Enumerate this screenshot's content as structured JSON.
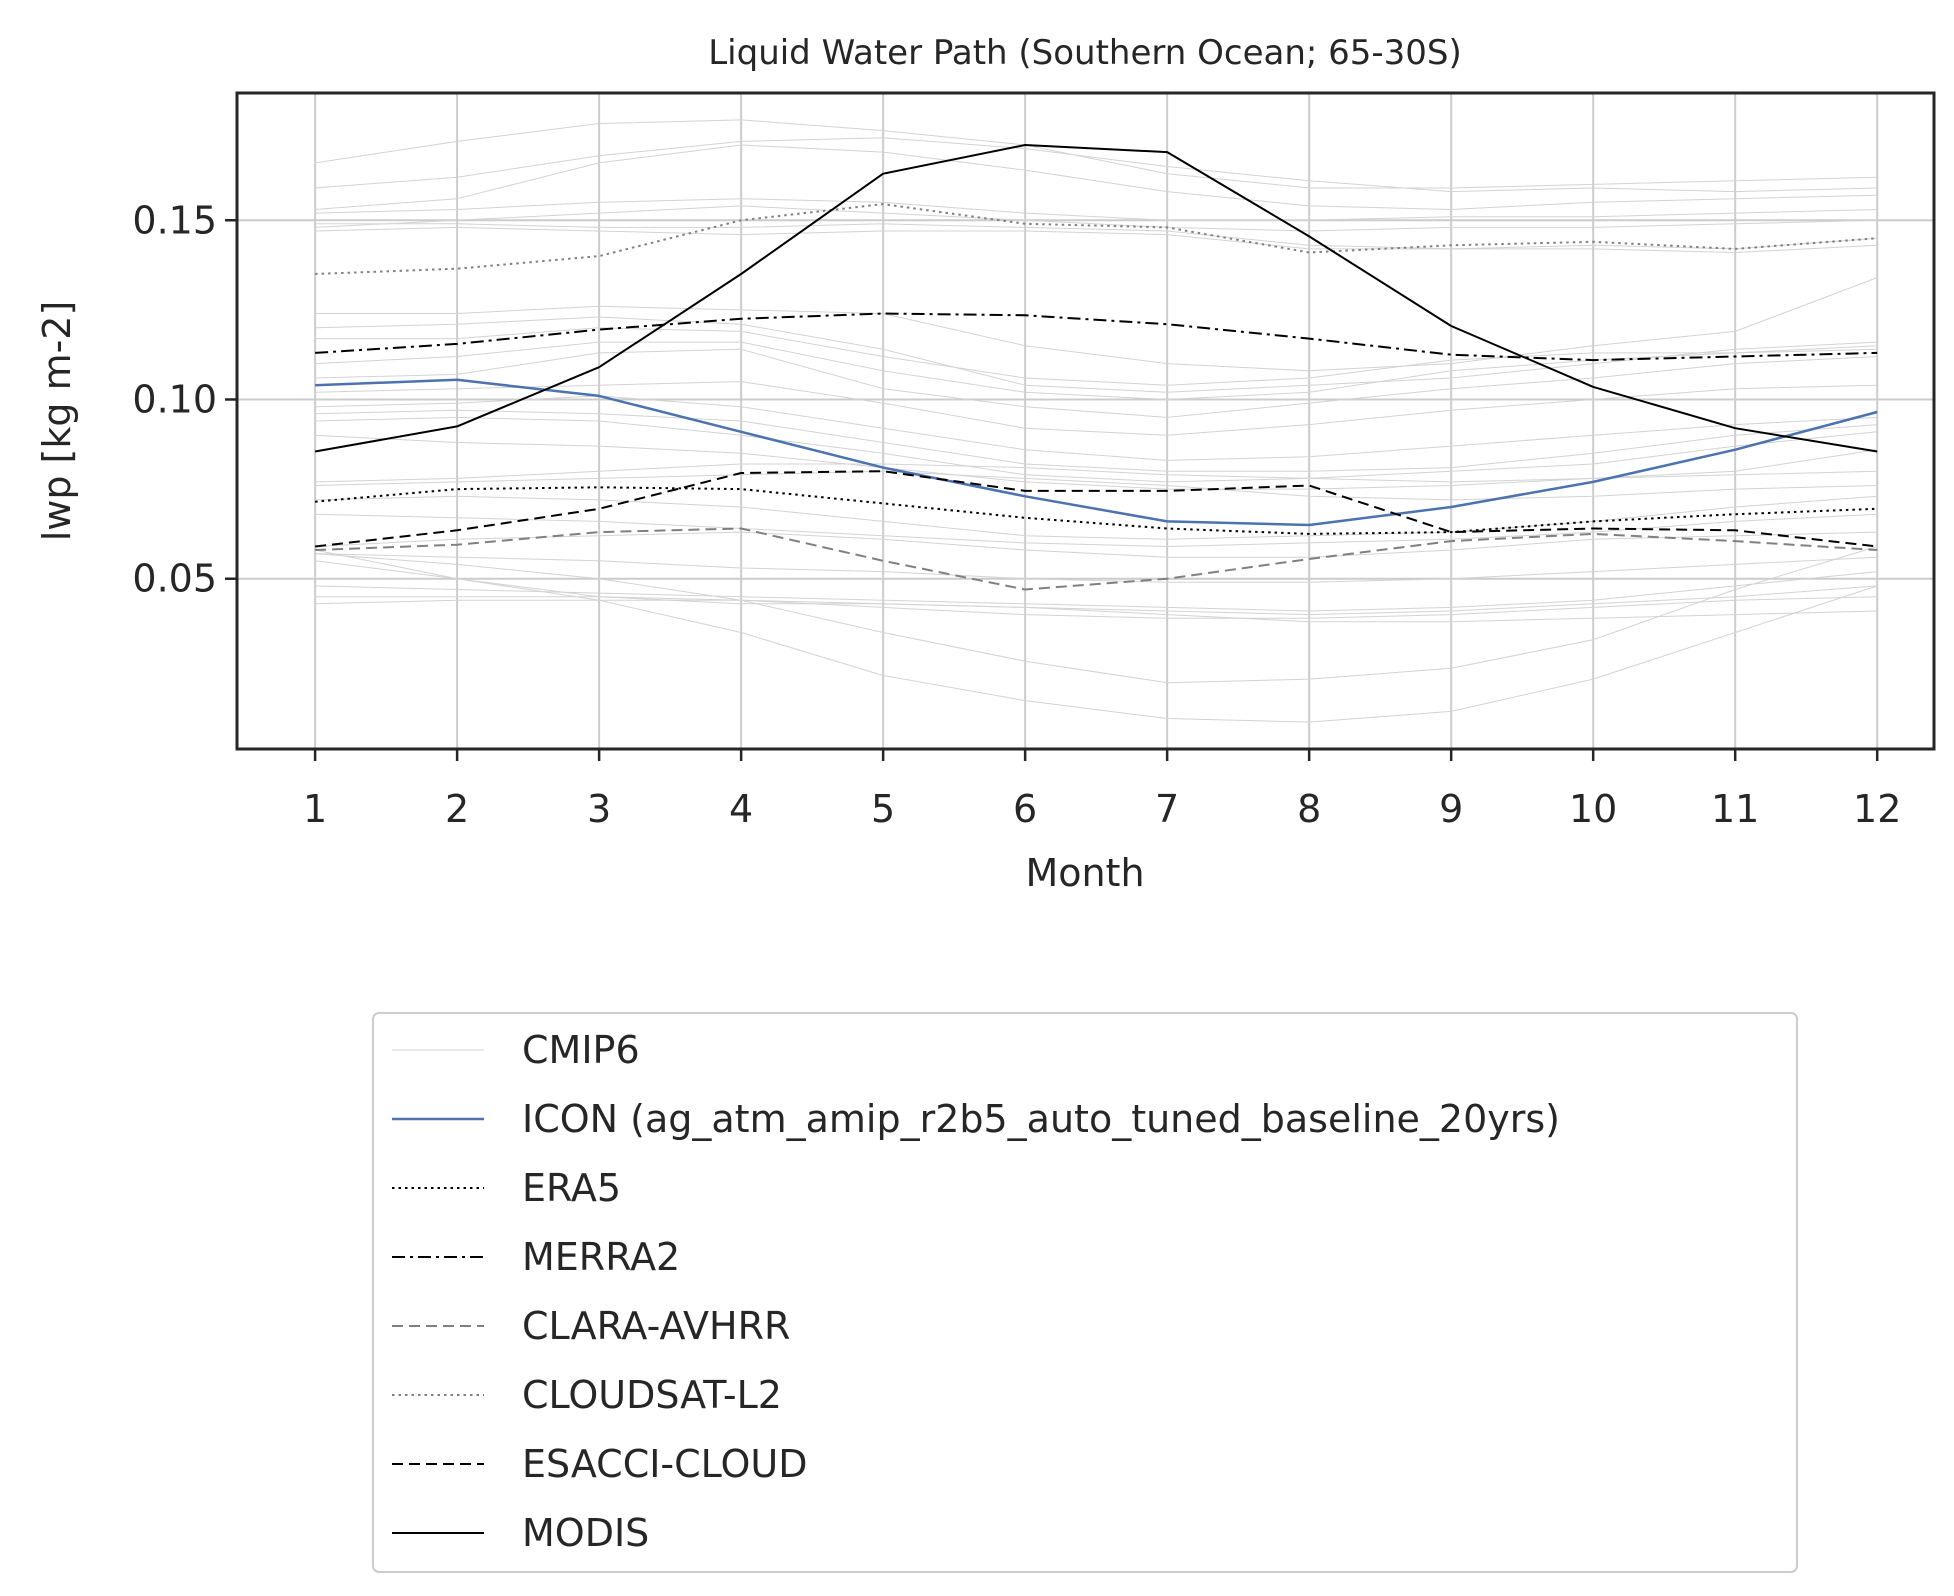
{
  "chart_data": {
    "type": "line",
    "title": "Liquid Water Path (Southern Ocean; 65-30S)",
    "xlabel": "Month",
    "ylabel": "lwp [kg m-2]",
    "x": [
      1,
      2,
      3,
      4,
      5,
      6,
      7,
      8,
      9,
      10,
      11,
      12
    ],
    "xticks": [
      "1",
      "2",
      "3",
      "4",
      "5",
      "6",
      "7",
      "8",
      "9",
      "10",
      "11",
      "12"
    ],
    "yticks": [
      "0.05",
      "0.10",
      "0.15"
    ],
    "ytick_values": [
      0.05,
      0.1,
      0.15
    ],
    "xlim": [
      0.45,
      12.4
    ],
    "ylim": [
      0.0025,
      0.1855
    ],
    "grid": true,
    "legend_position": "below",
    "series": [
      {
        "name": "CMIP6",
        "color": "#d3d3d3",
        "dash": "solid",
        "width": 1.0,
        "values": [
          [
            0.166,
            0.172,
            0.177,
            0.178,
            0.175,
            0.171,
            0.163,
            0.159,
            0.159,
            0.16,
            0.161,
            0.162
          ],
          [
            0.159,
            0.162,
            0.168,
            0.172,
            0.173,
            0.17,
            0.165,
            0.161,
            0.158,
            0.159,
            0.158,
            0.159
          ],
          [
            0.153,
            0.156,
            0.166,
            0.171,
            0.169,
            0.164,
            0.158,
            0.154,
            0.153,
            0.155,
            0.156,
            0.157
          ],
          [
            0.152,
            0.153,
            0.155,
            0.156,
            0.155,
            0.152,
            0.15,
            0.15,
            0.151,
            0.151,
            0.152,
            0.153
          ],
          [
            0.148,
            0.15,
            0.152,
            0.154,
            0.152,
            0.15,
            0.148,
            0.147,
            0.148,
            0.148,
            0.149,
            0.15
          ],
          [
            0.149,
            0.149,
            0.148,
            0.148,
            0.149,
            0.148,
            0.147,
            0.143,
            0.142,
            0.142,
            0.141,
            0.143
          ],
          [
            0.147,
            0.148,
            0.147,
            0.146,
            0.147,
            0.147,
            0.146,
            0.142,
            0.142,
            0.143,
            0.142,
            0.145
          ],
          [
            0.124,
            0.124,
            0.126,
            0.125,
            0.124,
            0.115,
            0.11,
            0.108,
            0.11,
            0.115,
            0.119,
            0.134
          ],
          [
            0.12,
            0.121,
            0.123,
            0.121,
            0.114,
            0.104,
            0.102,
            0.104,
            0.106,
            0.11,
            0.114,
            0.116
          ],
          [
            0.117,
            0.117,
            0.12,
            0.119,
            0.112,
            0.106,
            0.104,
            0.106,
            0.111,
            0.113,
            0.113,
            0.115
          ],
          [
            0.11,
            0.112,
            0.116,
            0.116,
            0.108,
            0.102,
            0.1,
            0.102,
            0.108,
            0.111,
            0.113,
            0.114
          ],
          [
            0.106,
            0.107,
            0.113,
            0.114,
            0.103,
            0.098,
            0.095,
            0.099,
            0.103,
            0.106,
            0.11,
            0.112
          ],
          [
            0.102,
            0.103,
            0.104,
            0.105,
            0.099,
            0.092,
            0.09,
            0.093,
            0.097,
            0.1,
            0.103,
            0.104
          ],
          [
            0.098,
            0.099,
            0.101,
            0.098,
            0.092,
            0.086,
            0.083,
            0.084,
            0.087,
            0.09,
            0.093,
            0.095
          ],
          [
            0.096,
            0.097,
            0.096,
            0.094,
            0.088,
            0.082,
            0.08,
            0.08,
            0.081,
            0.085,
            0.09,
            0.093
          ],
          [
            0.094,
            0.095,
            0.094,
            0.09,
            0.085,
            0.079,
            0.077,
            0.078,
            0.08,
            0.082,
            0.087,
            0.091
          ],
          [
            0.09,
            0.088,
            0.087,
            0.085,
            0.081,
            0.077,
            0.075,
            0.075,
            0.076,
            0.078,
            0.08,
            0.086
          ],
          [
            0.077,
            0.078,
            0.08,
            0.082,
            0.082,
            0.081,
            0.079,
            0.078,
            0.077,
            0.078,
            0.079,
            0.08
          ],
          [
            0.076,
            0.077,
            0.078,
            0.079,
            0.08,
            0.078,
            0.076,
            0.073,
            0.072,
            0.073,
            0.075,
            0.076
          ],
          [
            0.072,
            0.073,
            0.072,
            0.07,
            0.066,
            0.062,
            0.061,
            0.062,
            0.063,
            0.066,
            0.07,
            0.073
          ],
          [
            0.068,
            0.067,
            0.066,
            0.064,
            0.062,
            0.06,
            0.059,
            0.06,
            0.061,
            0.063,
            0.066,
            0.068
          ],
          [
            0.059,
            0.061,
            0.062,
            0.063,
            0.061,
            0.058,
            0.056,
            0.056,
            0.058,
            0.061,
            0.062,
            0.063
          ],
          [
            0.057,
            0.056,
            0.055,
            0.053,
            0.052,
            0.05,
            0.049,
            0.049,
            0.05,
            0.052,
            0.054,
            0.056
          ],
          [
            0.055,
            0.05,
            0.045,
            0.043,
            0.043,
            0.042,
            0.041,
            0.04,
            0.041,
            0.043,
            0.045,
            0.048
          ],
          [
            0.048,
            0.047,
            0.046,
            0.045,
            0.044,
            0.043,
            0.042,
            0.041,
            0.042,
            0.044,
            0.048,
            0.052
          ],
          [
            0.045,
            0.045,
            0.045,
            0.044,
            0.042,
            0.04,
            0.039,
            0.039,
            0.04,
            0.042,
            0.044,
            0.045
          ],
          [
            0.043,
            0.044,
            0.044,
            0.044,
            0.043,
            0.042,
            0.04,
            0.038,
            0.038,
            0.039,
            0.04,
            0.041
          ],
          [
            0.058,
            0.05,
            0.044,
            0.035,
            0.023,
            0.016,
            0.011,
            0.01,
            0.013,
            0.022,
            0.035,
            0.048
          ],
          [
            0.057,
            0.054,
            0.05,
            0.044,
            0.035,
            0.027,
            0.021,
            0.022,
            0.025,
            0.033,
            0.047,
            0.059
          ]
        ]
      },
      {
        "name": "ICON (ag_atm_amip_r2b5_auto_tuned_baseline_20yrs)",
        "color": "#4c72b0",
        "dash": "solid",
        "width": 2.5,
        "values": [
          0.104,
          0.1055,
          0.101,
          0.091,
          0.081,
          0.073,
          0.066,
          0.065,
          0.07,
          0.077,
          0.086,
          0.0965
        ]
      },
      {
        "name": "ERA5",
        "color": "#000000",
        "dash": "dotted",
        "width": 2.0,
        "values": [
          0.0715,
          0.075,
          0.0755,
          0.075,
          0.071,
          0.067,
          0.064,
          0.0625,
          0.063,
          0.066,
          0.068,
          0.0695
        ]
      },
      {
        "name": "MERRA2",
        "color": "#000000",
        "dash": "dashdot",
        "width": 2.0,
        "values": [
          0.113,
          0.1155,
          0.1195,
          0.1225,
          0.124,
          0.1235,
          0.121,
          0.117,
          0.1125,
          0.111,
          0.112,
          0.113
        ]
      },
      {
        "name": "CLARA-AVHRR",
        "color": "#808080",
        "dash": "dashed",
        "width": 2.0,
        "values": [
          0.058,
          0.0595,
          0.063,
          0.064,
          0.055,
          0.047,
          0.05,
          0.0555,
          0.0605,
          0.0625,
          0.0605,
          0.058
        ]
      },
      {
        "name": "CLOUDSAT-L2",
        "color": "#808080",
        "dash": "dotted",
        "width": 2.0,
        "values": [
          0.135,
          0.1365,
          0.14,
          0.15,
          0.1545,
          0.149,
          0.148,
          0.141,
          0.143,
          0.144,
          0.142,
          0.145
        ]
      },
      {
        "name": "ESACCI-CLOUD",
        "color": "#000000",
        "dash": "dashed",
        "width": 2.0,
        "values": [
          0.059,
          0.0635,
          0.0695,
          0.0795,
          0.08,
          0.0745,
          0.0745,
          0.076,
          0.063,
          0.064,
          0.0635,
          0.059
        ]
      },
      {
        "name": "MODIS",
        "color": "#000000",
        "dash": "solid",
        "width": 2.0,
        "values": [
          0.0855,
          0.0925,
          0.109,
          0.135,
          0.163,
          0.171,
          0.169,
          0.1455,
          0.1205,
          0.1035,
          0.092,
          0.0855
        ]
      }
    ]
  }
}
